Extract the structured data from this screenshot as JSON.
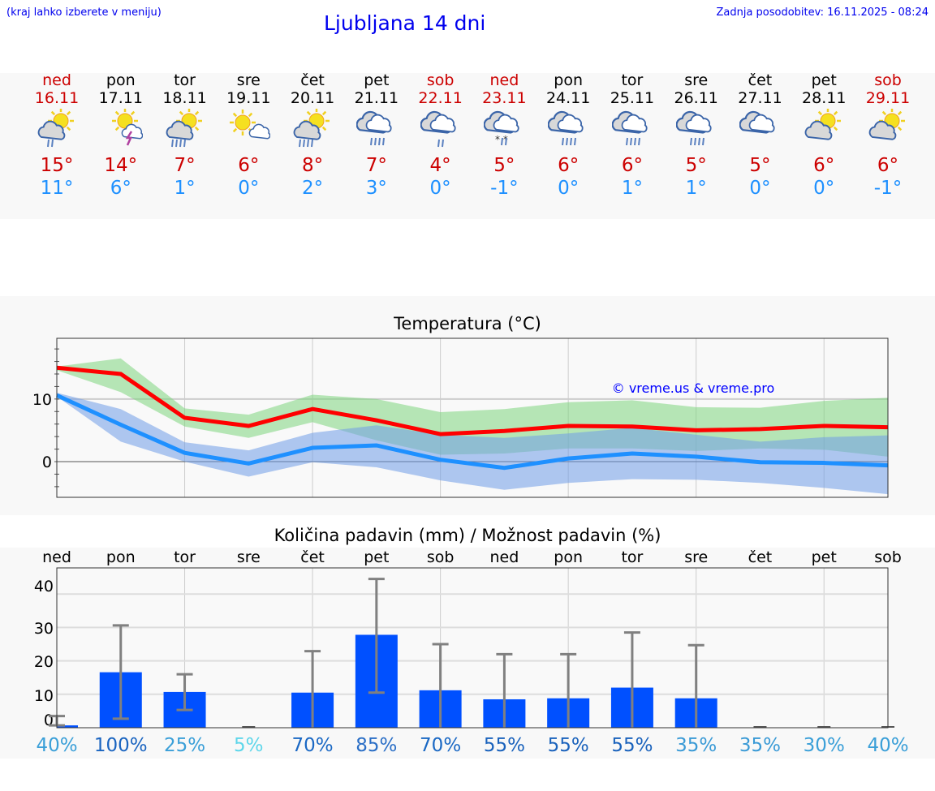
{
  "header": {
    "hint": "(kraj lahko izberete v meniju)",
    "title": "Ljubljana 14 dni",
    "updated": "Zadnja posodobitev: 16.11.2025 - 08:24"
  },
  "colors": {
    "weekend": "#cc0000",
    "weekday": "#000000",
    "max": "#cc0000",
    "min": "#1e90ff",
    "bar": "#0050ff"
  },
  "days": [
    {
      "name": "ned",
      "date": "16.11",
      "weekend": true,
      "icon": "sun-cloud-rain-icon",
      "max": "15°",
      "min": "11°"
    },
    {
      "name": "pon",
      "date": "17.11",
      "weekend": false,
      "icon": "sun-thunderstorm-icon",
      "max": "14°",
      "min": "6°"
    },
    {
      "name": "tor",
      "date": "18.11",
      "weekend": false,
      "icon": "sun-cloud-heavy-rain-icon",
      "max": "7°",
      "min": "1°"
    },
    {
      "name": "sre",
      "date": "19.11",
      "weekend": false,
      "icon": "sun-small-cloud-icon",
      "max": "6°",
      "min": "0°"
    },
    {
      "name": "čet",
      "date": "20.11",
      "weekend": false,
      "icon": "sun-cloud-heavy-rain-icon",
      "max": "8°",
      "min": "2°"
    },
    {
      "name": "pet",
      "date": "21.11",
      "weekend": false,
      "icon": "cloud-heavy-rain-icon",
      "max": "7°",
      "min": "3°"
    },
    {
      "name": "sob",
      "date": "22.11",
      "weekend": true,
      "icon": "cloud-rain-icon",
      "max": "4°",
      "min": "0°"
    },
    {
      "name": "ned",
      "date": "23.11",
      "weekend": true,
      "icon": "cloud-sleet-icon",
      "max": "5°",
      "min": "-1°"
    },
    {
      "name": "pon",
      "date": "24.11",
      "weekend": false,
      "icon": "cloud-heavy-rain-icon",
      "max": "6°",
      "min": "0°"
    },
    {
      "name": "tor",
      "date": "25.11",
      "weekend": false,
      "icon": "cloud-heavy-rain-icon",
      "max": "6°",
      "min": "1°"
    },
    {
      "name": "sre",
      "date": "26.11",
      "weekend": false,
      "icon": "cloud-heavy-rain-icon",
      "max": "5°",
      "min": "1°"
    },
    {
      "name": "čet",
      "date": "27.11",
      "weekend": false,
      "icon": "cloud-icon",
      "max": "5°",
      "min": "0°"
    },
    {
      "name": "pet",
      "date": "28.11",
      "weekend": false,
      "icon": "sun-cloud-icon",
      "max": "6°",
      "min": "0°"
    },
    {
      "name": "sob",
      "date": "29.11",
      "weekend": true,
      "icon": "sun-cloud-icon",
      "max": "6°",
      "min": "-1°"
    }
  ],
  "chart_data": [
    {
      "type": "line",
      "title": "Temperatura (°C)",
      "watermark": "© vreme.us & vreme.pro",
      "ylim": [
        -5.7,
        19.7
      ],
      "yticks": [
        0,
        10
      ],
      "grid": true,
      "categories": [
        "16.11",
        "17.11",
        "18.11",
        "19.11",
        "20.11",
        "21.11",
        "22.11",
        "23.11",
        "24.11",
        "25.11",
        "26.11",
        "27.11",
        "28.11",
        "29.11"
      ],
      "series": [
        {
          "role": "max",
          "color": "#ff0000",
          "values": [
            15,
            14,
            7,
            5.7,
            8.4,
            6.6,
            4.4,
            4.9,
            5.7,
            5.6,
            5,
            5.2,
            5.7,
            5.5
          ]
        },
        {
          "role": "min",
          "color": "#1e90ff",
          "values": [
            10.6,
            5.9,
            1.4,
            -0.3,
            2.2,
            2.6,
            0.3,
            -1,
            0.5,
            1.3,
            0.8,
            -0.1,
            -0.2,
            -0.6
          ]
        }
      ],
      "bands": [
        {
          "role": "max-range",
          "color": "#7ed67e",
          "upper": [
            15.2,
            16.5,
            8.5,
            7.5,
            10.7,
            10,
            7.9,
            8.4,
            9.5,
            9.8,
            8.7,
            8.6,
            9.7,
            10.2
          ],
          "lower": [
            14.6,
            11.1,
            5.6,
            3.8,
            6.3,
            3.4,
            1.1,
            1.3,
            2.1,
            2.1,
            1.7,
            2.1,
            1.9,
            0.8
          ]
        },
        {
          "role": "min-range",
          "color": "#6f9de8",
          "upper": [
            11,
            8.4,
            3.1,
            1.8,
            4.6,
            5.8,
            4.3,
            3.8,
            4.5,
            5.4,
            4.3,
            3.2,
            3.9,
            4.2
          ],
          "lower": [
            10.4,
            3.2,
            0,
            -2.4,
            -0.1,
            -0.9,
            -3,
            -4.5,
            -3.4,
            -2.8,
            -2.9,
            -3.4,
            -4.2,
            -5.2
          ]
        }
      ]
    },
    {
      "type": "bar",
      "title": "Količina padavin (mm) / Možnost padavin (%)",
      "ylim": [
        0,
        43
      ],
      "yticks": [
        0,
        10,
        20,
        30,
        40
      ],
      "grid": true,
      "categories": [
        "ned",
        "pon",
        "tor",
        "sre",
        "čet",
        "pet",
        "sob",
        "ned",
        "pon",
        "tor",
        "sre",
        "čet",
        "pet",
        "sob"
      ],
      "values": [
        0.7,
        16.6,
        10.7,
        0,
        10.5,
        27.8,
        11.2,
        8.5,
        8.8,
        12,
        8.8,
        0,
        0,
        0
      ],
      "error_low": [
        0.7,
        2.7,
        5.3,
        0,
        0,
        10.5,
        0,
        0,
        0,
        0,
        0,
        0,
        0,
        0
      ],
      "error_high": [
        3.5,
        30.6,
        16,
        0,
        22.9,
        45,
        25,
        22,
        22,
        28.5,
        24.7,
        0,
        0,
        0
      ],
      "probability": [
        "40%",
        "100%",
        "25%",
        "5%",
        "70%",
        "85%",
        "70%",
        "55%",
        "55%",
        "55%",
        "35%",
        "35%",
        "30%",
        "40%"
      ],
      "probability_colors": [
        "#3a9fd8",
        "#1a64c0",
        "#3a9fd8",
        "#5ed6ea",
        "#1a68c4",
        "#2a6ec6",
        "#1a68c4",
        "#1a62bc",
        "#1a62bc",
        "#1a62bc",
        "#3a9ad6",
        "#3a9ad6",
        "#3a9fd8",
        "#3a9fd8"
      ]
    }
  ]
}
